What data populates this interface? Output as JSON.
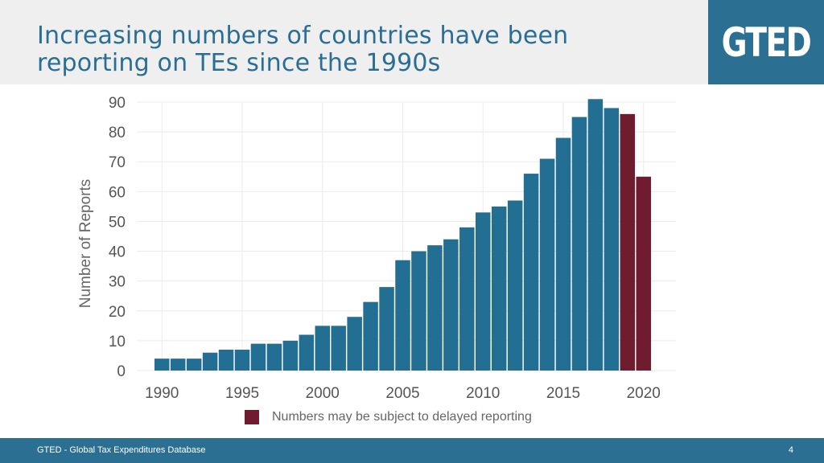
{
  "header": {
    "title": "Increasing numbers of countries have been reporting on TEs since the 1990s",
    "logo": "GTED"
  },
  "footer": {
    "text": "GTED - Global Tax Expenditures Database",
    "page": "4"
  },
  "legend": {
    "label": "Numbers may be subject to delayed reporting"
  },
  "colors": {
    "regular": "#236f94",
    "delayed": "#6f1d2e",
    "brand": "#2b6f93"
  },
  "chart_data": {
    "type": "bar",
    "title": "",
    "xlabel": "",
    "ylabel": "Number of Reports",
    "ylim": [
      0,
      90
    ],
    "yticks": [
      0,
      10,
      20,
      30,
      40,
      50,
      60,
      70,
      80,
      90
    ],
    "xticks": [
      1990,
      1995,
      2000,
      2005,
      2010,
      2015,
      2020
    ],
    "x": [
      1990,
      1991,
      1992,
      1993,
      1994,
      1995,
      1996,
      1997,
      1998,
      1999,
      2000,
      2001,
      2002,
      2003,
      2004,
      2005,
      2006,
      2007,
      2008,
      2009,
      2010,
      2011,
      2012,
      2013,
      2014,
      2015,
      2016,
      2017,
      2018,
      2019,
      2020
    ],
    "values": [
      4,
      4,
      4,
      6,
      7,
      7,
      9,
      9,
      10,
      12,
      15,
      15,
      18,
      23,
      28,
      37,
      40,
      42,
      44,
      48,
      53,
      55,
      57,
      66,
      71,
      78,
      85,
      91,
      88,
      86,
      65
    ],
    "delayed_from": 2019,
    "legend": "Numbers may be subject to delayed reporting"
  }
}
